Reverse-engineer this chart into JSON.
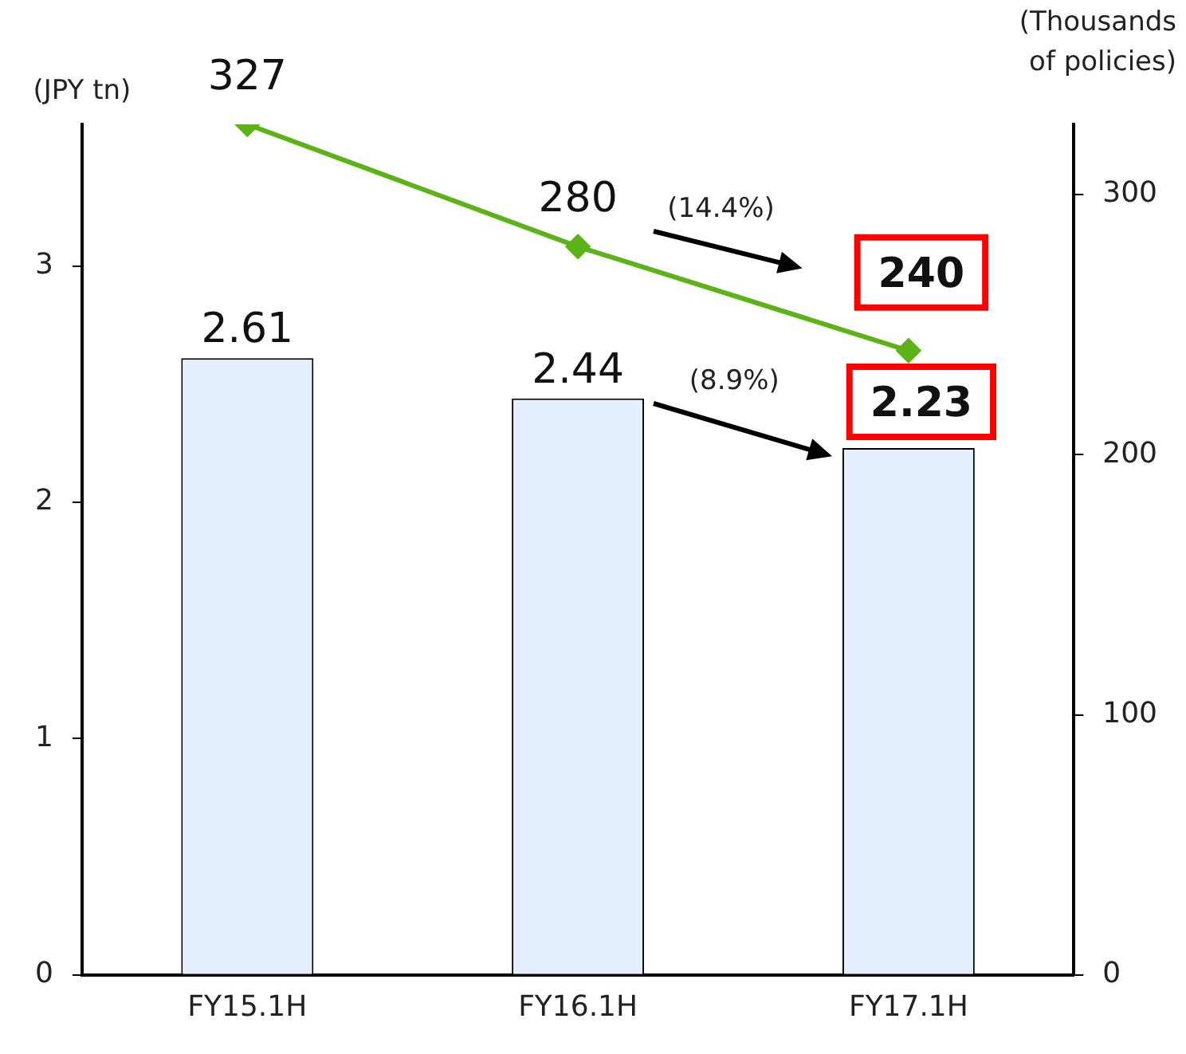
{
  "chart_data": {
    "type": "bar",
    "ylabel": "(JPY tn)",
    "y2label": "(Thousands of policies)",
    "categories": [
      "FY15.1H",
      "FY16.1H",
      "FY17.1H"
    ],
    "series": [
      {
        "color": "#e3effd",
        "values": [
          2.61,
          2.44,
          2.23
        ]
      },
      {
        "type": "line",
        "axis": "y2",
        "color": "#5cb318",
        "marker": "diamond",
        "values": [
          327,
          280,
          240
        ]
      }
    ],
    "ylim": [
      0,
      3.6
    ],
    "yticks": [
      0,
      1,
      2,
      3
    ],
    "y2lim": [
      0,
      327
    ],
    "y2ticks": [
      0,
      100,
      200,
      300
    ],
    "data_labels": true,
    "grid": false,
    "legend": false,
    "annotations": [
      "(14.4%)",
      "(8.9%)"
    ]
  }
}
